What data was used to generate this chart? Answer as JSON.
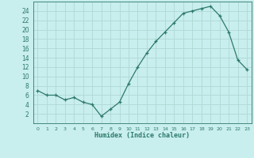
{
  "xlabel": "Humidex (Indice chaleur)",
  "x": [
    0,
    1,
    2,
    3,
    4,
    5,
    6,
    7,
    8,
    9,
    10,
    11,
    12,
    13,
    14,
    15,
    16,
    17,
    18,
    19,
    20,
    21,
    22,
    23
  ],
  "y": [
    7,
    6,
    6,
    5,
    5.5,
    4.5,
    4,
    1.5,
    3,
    4.5,
    8.5,
    12,
    15,
    17.5,
    19.5,
    21.5,
    23.5,
    24,
    24.5,
    25,
    23,
    19.5,
    13.5,
    11.5
  ],
  "line_color": "#2d7a6a",
  "bg_color": "#c8eeed",
  "grid_color": "#b0d8d4",
  "text_color": "#2d7a6a",
  "ylim": [
    0,
    26
  ],
  "xlim": [
    -0.5,
    23.5
  ],
  "yticks": [
    2,
    4,
    6,
    8,
    10,
    12,
    14,
    16,
    18,
    20,
    22,
    24
  ],
  "xticks": [
    0,
    1,
    2,
    3,
    4,
    5,
    6,
    7,
    8,
    9,
    10,
    11,
    12,
    13,
    14,
    15,
    16,
    17,
    18,
    19,
    20,
    21,
    22,
    23
  ],
  "marker": "+"
}
